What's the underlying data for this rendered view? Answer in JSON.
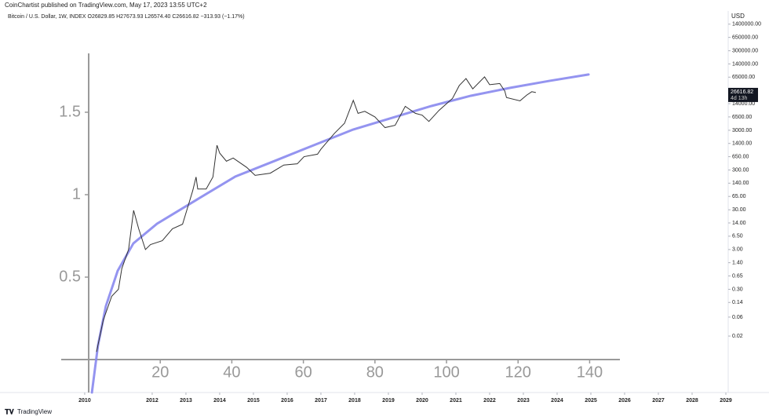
{
  "header": "CoinChartist published on TradingView.com, May 17, 2023 13:55 UTC+2",
  "footer": "TradingView",
  "chart_data": [
    {
      "type": "line",
      "title": "Bitcoin / U.S. Dollar, 1W, INDEX  O26829.85 H27673.93 L26574.40 C26616.82 −313.93 (−1.17%)",
      "y_axis_label": "USD",
      "countdown": "4d 13h",
      "log_scale": true,
      "color": "#333333",
      "x": [
        2010.35,
        2010.55,
        2010.8,
        2011.0,
        2011.1,
        2011.3,
        2011.45,
        2011.6,
        2011.8,
        2011.95,
        2012.3,
        2012.6,
        2012.9,
        2013.2,
        2013.3,
        2013.35,
        2013.6,
        2013.8,
        2013.92,
        2014.0,
        2014.2,
        2014.4,
        2014.8,
        2015.05,
        2015.5,
        2015.9,
        2016.3,
        2016.5,
        2016.9,
        2017.0,
        2017.4,
        2017.7,
        2017.96,
        2018.1,
        2018.3,
        2018.6,
        2018.9,
        2019.2,
        2019.5,
        2019.8,
        2020.0,
        2020.2,
        2020.5,
        2020.9,
        2021.1,
        2021.3,
        2021.5,
        2021.85,
        2022.0,
        2022.3,
        2022.45,
        2022.5,
        2022.9,
        2023.1,
        2023.25,
        2023.37
      ],
      "values": [
        0.008,
        0.05,
        0.2,
        0.3,
        1,
        3,
        29,
        10,
        3,
        4,
        5,
        10,
        13,
        90,
        200,
        100,
        100,
        200,
        1260,
        800,
        500,
        600,
        350,
        220,
        250,
        400,
        430,
        650,
        750,
        1000,
        2500,
        4500,
        17000,
        8000,
        9000,
        6500,
        3500,
        4000,
        12000,
        8000,
        7200,
        5000,
        9500,
        19000,
        40000,
        60000,
        33000,
        66000,
        42000,
        45000,
        29000,
        20000,
        16500,
        23000,
        28000,
        26616.82
      ],
      "xlim": [
        2007.49,
        2029.07
      ],
      "ylim": [
        0.00076,
        3000000
      ],
      "xticks": [
        2010,
        2012,
        2013,
        2014,
        2015,
        2016,
        2017,
        2018,
        2019,
        2020,
        2021,
        2022,
        2023,
        2024,
        2025,
        2026,
        2027,
        2028,
        2029
      ],
      "yticks": [
        {
          "value": 1400000,
          "label": "1400000.00"
        },
        {
          "value": 650000,
          "label": "650000.00"
        },
        {
          "value": 300000,
          "label": "300000.00"
        },
        {
          "value": 140000,
          "label": "140000.00"
        },
        {
          "value": 65000,
          "label": "65000.00"
        },
        {
          "value": 14000,
          "label": "14000.00"
        },
        {
          "value": 6500,
          "label": "6500.00"
        },
        {
          "value": 3000,
          "label": "3000.00"
        },
        {
          "value": 1400,
          "label": "1400.00"
        },
        {
          "value": 650,
          "label": "650.00"
        },
        {
          "value": 300,
          "label": "300.00"
        },
        {
          "value": 140,
          "label": "140.00"
        },
        {
          "value": 65,
          "label": "65.00"
        },
        {
          "value": 30,
          "label": "30.00"
        },
        {
          "value": 14,
          "label": "14.00"
        },
        {
          "value": 6.5,
          "label": "6.50"
        },
        {
          "value": 3,
          "label": "3.00"
        },
        {
          "value": 1.4,
          "label": "1.40"
        },
        {
          "value": 0.65,
          "label": "0.65"
        },
        {
          "value": 0.3,
          "label": "0.30"
        },
        {
          "value": 0.14,
          "label": "0.14"
        },
        {
          "value": 0.06,
          "label": "0.06"
        },
        {
          "value": 0.02,
          "label": "0.02"
        }
      ]
    },
    {
      "type": "line",
      "color": "#8888ee",
      "axis_color": "#999999",
      "x": [
        0.9,
        2.6,
        4.8,
        8.1,
        12.5,
        19.1,
        30.0,
        41.0,
        52.0,
        62.9,
        73.9,
        84.9,
        95.8,
        106.8,
        117.8,
        128.7,
        139.7
      ],
      "values": [
        -0.2,
        0.086,
        0.324,
        0.538,
        0.705,
        0.824,
        0.967,
        1.11,
        1.205,
        1.3,
        1.395,
        1.467,
        1.538,
        1.6,
        1.648,
        1.69,
        1.729
      ],
      "xlim": [
        -7.68,
        148.46
      ],
      "ylim": [
        -0.2,
        1.857
      ],
      "xticks": [
        20,
        40,
        60,
        80,
        100,
        120,
        140
      ],
      "yticks": [
        0.5,
        1,
        1.5
      ]
    }
  ]
}
